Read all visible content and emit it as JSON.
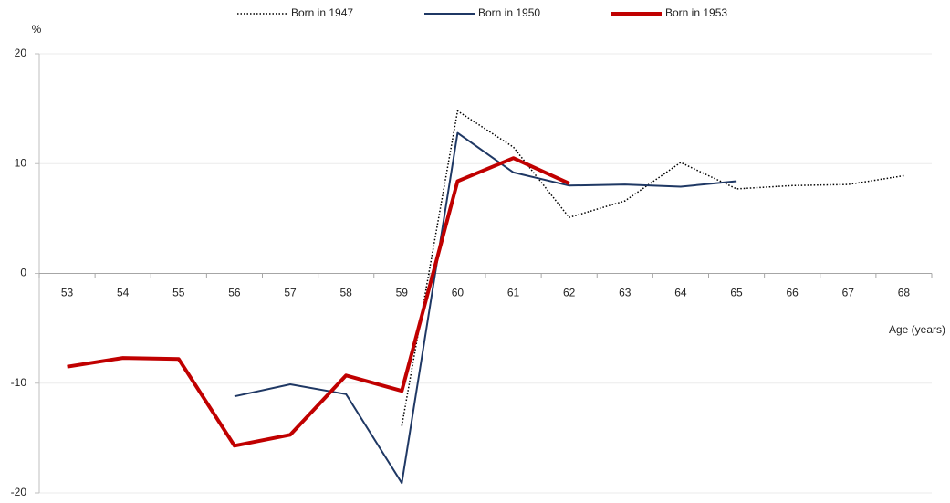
{
  "chart_data": {
    "type": "line",
    "y_label": "%",
    "x_label": "Age (years)",
    "categories": [
      "53",
      "54",
      "55",
      "56",
      "57",
      "58",
      "59",
      "60",
      "61",
      "62",
      "63",
      "64",
      "65",
      "66",
      "67",
      "68"
    ],
    "ylim": [
      -20,
      20
    ],
    "yticks": [
      -20,
      -10,
      0,
      10,
      20
    ],
    "grid": true,
    "legend": "top",
    "series": [
      {
        "name": "Born in 1947",
        "color": "#000000",
        "line_style": "dotted",
        "values": [
          null,
          null,
          null,
          null,
          null,
          null,
          -13.9,
          14.8,
          11.5,
          5.1,
          6.6,
          10.1,
          7.7,
          8.0,
          8.1,
          8.9
        ]
      },
      {
        "name": "Born in 1950",
        "color": "#1f3864",
        "line_style": "solid",
        "values": [
          null,
          null,
          null,
          -11.2,
          -10.1,
          -11.0,
          -19.1,
          12.8,
          9.2,
          8.0,
          8.1,
          7.9,
          8.4,
          null,
          null,
          null
        ]
      },
      {
        "name": "Born in 1953",
        "color": "#c00000",
        "line_style": "thick",
        "values": [
          -8.5,
          -7.7,
          -7.8,
          -15.7,
          -14.7,
          -9.3,
          -10.7,
          8.4,
          10.5,
          8.2,
          null,
          null,
          null,
          null,
          null,
          null
        ]
      }
    ]
  }
}
